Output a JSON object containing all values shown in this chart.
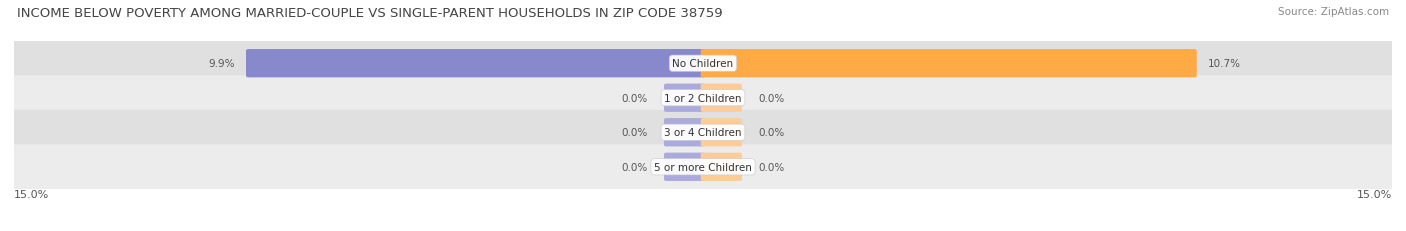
{
  "title": "INCOME BELOW POVERTY AMONG MARRIED-COUPLE VS SINGLE-PARENT HOUSEHOLDS IN ZIP CODE 38759",
  "source": "Source: ZipAtlas.com",
  "categories": [
    "No Children",
    "1 or 2 Children",
    "3 or 4 Children",
    "5 or more Children"
  ],
  "married_values": [
    9.9,
    0.0,
    0.0,
    0.0
  ],
  "single_values": [
    10.7,
    0.0,
    0.0,
    0.0
  ],
  "max_val": 15.0,
  "married_color": "#8888cc",
  "married_color_zero": "#aaaadd",
  "single_color": "#ffaa44",
  "single_color_zero": "#ffcc99",
  "row_bg_light": "#ececec",
  "row_bg_dark": "#e0e0e0",
  "title_fontsize": 9.5,
  "source_fontsize": 7.5,
  "label_fontsize": 7.5,
  "category_fontsize": 7.5,
  "axis_label_fontsize": 8,
  "legend_fontsize": 8
}
